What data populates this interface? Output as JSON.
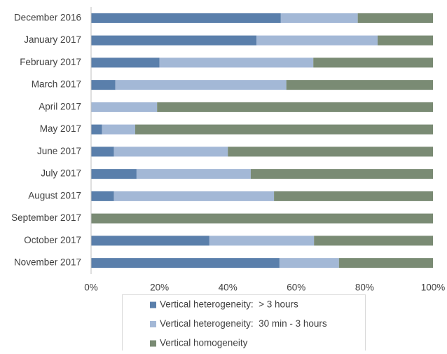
{
  "chart_data": {
    "type": "stacked-barh",
    "categories": [
      "December 2016",
      "January 2017",
      "February 2017",
      "March 2017",
      "April 2017",
      "May 2017",
      "June 2017",
      "July 2017",
      "August 2017",
      "September 2017",
      "October 2017",
      "November 2017"
    ],
    "series": [
      {
        "name": "Vertical heterogeneity:  > 3 hours",
        "color": "#5a7fab",
        "values": [
          55.5,
          48.4,
          20,
          7.1,
          0,
          3.2,
          6.7,
          13.3,
          6.7,
          0,
          34.6,
          55.1
        ]
      },
      {
        "name": "Vertical heterogeneity:  30 min - 3 hours",
        "color": "#a3b8d6",
        "values": [
          22.5,
          35.4,
          45,
          50,
          19.3,
          9.7,
          33.3,
          33.4,
          46.8,
          0,
          30.6,
          17.4
        ]
      },
      {
        "name": "Vertical homogeneity",
        "color": "#7a8b74",
        "values": [
          22,
          16.2,
          35,
          42.9,
          80.7,
          87.1,
          60,
          53.3,
          46.5,
          100,
          34.8,
          27.5
        ]
      }
    ],
    "xlim": [
      0,
      100
    ],
    "xticks": [
      {
        "value": 0,
        "label": "0%"
      },
      {
        "value": 20,
        "label": "20%"
      },
      {
        "value": 40,
        "label": "40%"
      },
      {
        "value": 60,
        "label": "60%"
      },
      {
        "value": 80,
        "label": "80%"
      },
      {
        "value": 100,
        "label": "100%"
      }
    ],
    "legend": "bottom"
  }
}
